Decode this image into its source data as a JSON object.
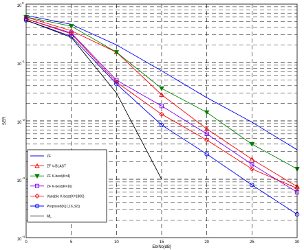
{
  "chart_data": {
    "type": "line",
    "title": "",
    "xlabel": "Eb/No[dB]",
    "ylabel": "SER",
    "x_ticks": [
      "0",
      "5",
      "10",
      "15",
      "20",
      "25",
      "30"
    ],
    "y_ticks": [
      {
        "base": "10",
        "exp": "0",
        "value": 1
      },
      {
        "base": "10",
        "exp": "-1",
        "value": 0.1
      },
      {
        "base": "10",
        "exp": "-2",
        "value": 0.01
      },
      {
        "base": "10",
        "exp": "-3",
        "value": 0.001
      },
      {
        "base": "10",
        "exp": "-4",
        "value": 0.0001
      }
    ],
    "xlim": [
      0,
      30
    ],
    "ylim": [
      0.0001,
      1
    ],
    "yscale": "log",
    "grid": true,
    "legend_position": "bottom-left",
    "x": [
      0,
      5,
      10,
      15,
      20,
      25,
      30
    ],
    "series": [
      {
        "name": "ZF",
        "color": "#0000ff",
        "marker": "none",
        "values": [
          0.64,
          0.45,
          0.2,
          0.072,
          0.025,
          0.0095,
          0.0032
        ]
      },
      {
        "name": "ZF V-BLAST",
        "color": "#ff0000",
        "marker": "triangle-up",
        "values": [
          0.6,
          0.35,
          0.15,
          0.028,
          0.0073,
          0.0022,
          0.00075
        ]
      },
      {
        "name": "ZF K-best(K=4)",
        "color": "#008000",
        "marker": "triangle-down",
        "values": [
          0.6,
          0.42,
          0.15,
          0.036,
          0.014,
          0.004,
          0.0015
        ]
      },
      {
        "name": "ZF K-best(K=16)",
        "color": "#8000ff",
        "marker": "square",
        "values": [
          0.56,
          0.32,
          0.05,
          0.018,
          0.006,
          0.0018,
          0.0006
        ]
      },
      {
        "name": "Variable K-best(K=1800)",
        "color": "#ff0000",
        "marker": "diamond",
        "values": [
          0.56,
          0.31,
          0.046,
          0.013,
          0.0047,
          0.0015,
          0.0007
        ]
      },
      {
        "name": "Proposed(K{1,16,32})",
        "color": "#0000ff",
        "marker": "circle",
        "values": [
          0.53,
          0.28,
          0.043,
          0.0085,
          0.0027,
          0.0008,
          0.00025
        ]
      },
      {
        "name": "ML",
        "color": "#000000",
        "marker": "none",
        "x": [
          0,
          5,
          10,
          15
        ],
        "values": [
          0.53,
          0.27,
          0.03,
          0.001
        ]
      }
    ]
  }
}
